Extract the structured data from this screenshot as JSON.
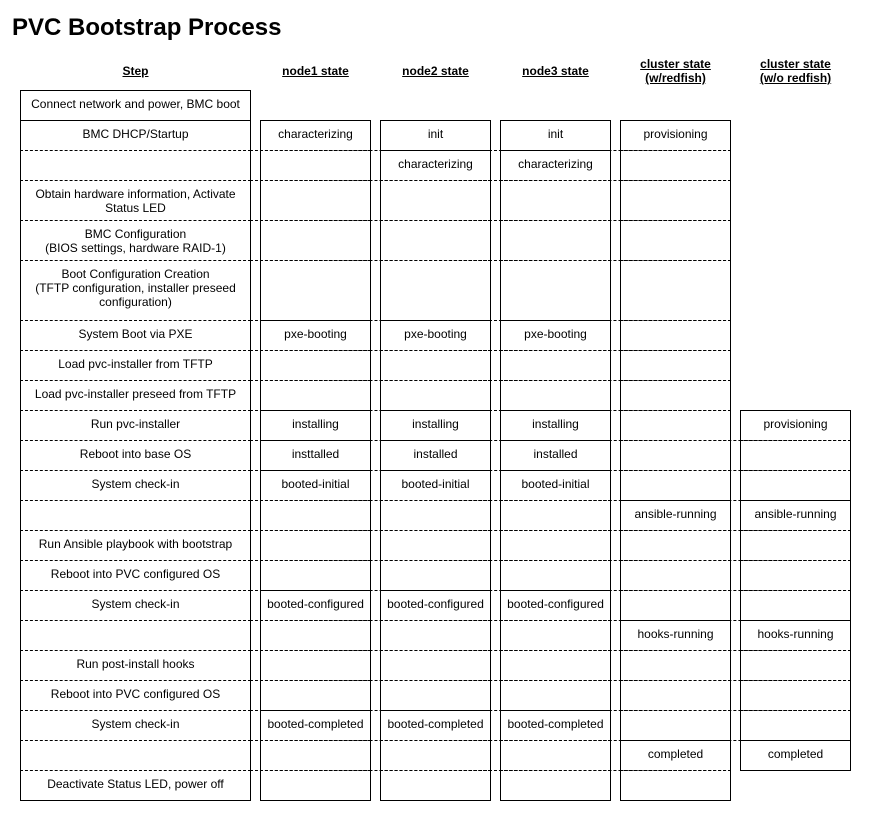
{
  "title": "PVC Bootstrap Process",
  "headers": [
    "Step",
    "node1 state",
    "node2 state",
    "node3 state",
    "cluster state\n(w/redfish)",
    "cluster state\n(w/o redfish)"
  ],
  "rows": [
    {
      "step": "Connect network and power, BMC boot",
      "n1": "",
      "n2": "",
      "n3": "",
      "cw": "",
      "cwo": ""
    },
    {
      "step": "BMC DHCP/Startup",
      "n1": "characterizing",
      "n2": "init",
      "n3": "init",
      "cw": "provisioning",
      "cwo": ""
    },
    {
      "step": "",
      "n1": "",
      "n2": "characterizing",
      "n3": "characterizing",
      "cw": "",
      "cwo": ""
    },
    {
      "step": "Obtain hardware information, Activate Status LED",
      "n1": "",
      "n2": "",
      "n3": "",
      "cw": "",
      "cwo": ""
    },
    {
      "step": "BMC Configuration\n(BIOS settings, hardware RAID-1)",
      "n1": "",
      "n2": "",
      "n3": "",
      "cw": "",
      "cwo": ""
    },
    {
      "step": "Boot Configuration Creation\n(TFTP configuration, installer preseed configuration)",
      "n1": "",
      "n2": "",
      "n3": "",
      "cw": "",
      "cwo": ""
    },
    {
      "step": "System Boot via PXE",
      "n1": "pxe-booting",
      "n2": "pxe-booting",
      "n3": "pxe-booting",
      "cw": "",
      "cwo": ""
    },
    {
      "step": "Load pvc-installer from TFTP",
      "n1": "",
      "n2": "",
      "n3": "",
      "cw": "",
      "cwo": ""
    },
    {
      "step": "Load pvc-installer preseed from TFTP",
      "n1": "",
      "n2": "",
      "n3": "",
      "cw": "",
      "cwo": ""
    },
    {
      "step": "Run pvc-installer",
      "n1": "installing",
      "n2": "installing",
      "n3": "installing",
      "cw": "",
      "cwo": "provisioning"
    },
    {
      "step": "Reboot into base OS",
      "n1": "insttalled",
      "n2": "installed",
      "n3": "installed",
      "cw": "",
      "cwo": ""
    },
    {
      "step": "System check-in",
      "n1": "booted-initial",
      "n2": "booted-initial",
      "n3": "booted-initial",
      "cw": "",
      "cwo": ""
    },
    {
      "step": "",
      "n1": "",
      "n2": "",
      "n3": "",
      "cw": "ansible-running",
      "cwo": "ansible-running"
    },
    {
      "step": "Run Ansible playbook with bootstrap",
      "n1": "",
      "n2": "",
      "n3": "",
      "cw": "",
      "cwo": ""
    },
    {
      "step": "Reboot into PVC configured OS",
      "n1": "",
      "n2": "",
      "n3": "",
      "cw": "",
      "cwo": ""
    },
    {
      "step": "System check-in",
      "n1": "booted-configured",
      "n2": "booted-configured",
      "n3": "booted-configured",
      "cw": "",
      "cwo": ""
    },
    {
      "step": "",
      "n1": "",
      "n2": "",
      "n3": "",
      "cw": "hooks-running",
      "cwo": "hooks-running"
    },
    {
      "step": "Run post-install hooks",
      "n1": "",
      "n2": "",
      "n3": "",
      "cw": "",
      "cwo": ""
    },
    {
      "step": "Reboot into PVC configured OS",
      "n1": "",
      "n2": "",
      "n3": "",
      "cw": "",
      "cwo": ""
    },
    {
      "step": "System check-in",
      "n1": "booted-completed",
      "n2": "booted-completed",
      "n3": "booted-completed",
      "cw": "",
      "cwo": ""
    },
    {
      "step": "",
      "n1": "",
      "n2": "",
      "n3": "",
      "cw": "completed",
      "cwo": "completed"
    },
    {
      "step": "Deactivate Status LED, power off",
      "n1": "",
      "n2": "",
      "n3": "",
      "cw": "",
      "cwo": ""
    }
  ]
}
